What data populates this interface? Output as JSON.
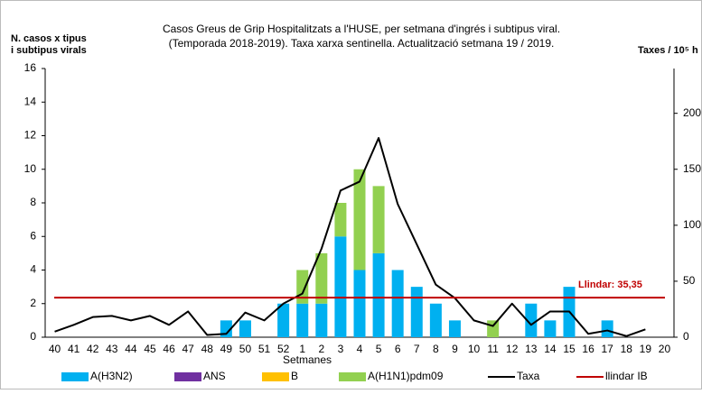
{
  "chart_data": {
    "type": "bar",
    "title": "Casos  Greus de Grip Hospitalitzats a l'HUSE, per setmana  d'ingrés  i subtipus viral.",
    "subtitle": "(Temporada 2018-2019). Taxa xarxa sentinella.  Actualització setmana  19 / 2019.",
    "y_label": [
      "N.  casos x tipus",
      "i subtipus virals"
    ],
    "y2_label": "Taxes / 10⁵ h",
    "x_label": "Setmanes",
    "categories": [
      "40",
      "41",
      "42",
      "43",
      "44",
      "45",
      "46",
      "47",
      "48",
      "49",
      "50",
      "51",
      "52",
      "1",
      "2",
      "3",
      "4",
      "5",
      "6",
      "7",
      "8",
      "9",
      "10",
      "11",
      "12",
      "13",
      "14",
      "15",
      "16",
      "17",
      "18",
      "19",
      "20"
    ],
    "series": [
      {
        "name": "A(H3N2)",
        "color": "#00b0f0",
        "values": [
          0,
          0,
          0,
          0,
          0,
          0,
          0,
          0,
          0,
          1,
          1,
          0,
          2,
          2,
          2,
          6,
          4,
          5,
          4,
          3,
          2,
          1,
          0,
          0,
          0,
          2,
          1,
          3,
          0,
          1,
          0,
          0,
          0
        ]
      },
      {
        "name": "ANS",
        "color": "#7030a0",
        "values": [
          0,
          0,
          0,
          0,
          0,
          0,
          0,
          0,
          0,
          0,
          0,
          0,
          0,
          0,
          0,
          0,
          0,
          0,
          0,
          0,
          0,
          0,
          0,
          0,
          0,
          0,
          0,
          0,
          0,
          0,
          0,
          0,
          0
        ]
      },
      {
        "name": "B",
        "color": "#ffc000",
        "values": [
          0,
          0,
          0,
          0,
          0,
          0,
          0,
          0,
          0,
          0,
          0,
          0,
          0,
          0,
          0,
          0,
          0,
          0,
          0,
          0,
          0,
          0,
          0,
          0,
          0,
          0,
          0,
          0,
          0,
          0,
          0,
          0,
          0
        ]
      },
      {
        "name": "A(H1N1)pdm09",
        "color": "#92d050",
        "values": [
          0,
          0,
          0,
          0,
          0,
          0,
          0,
          0,
          0,
          0,
          0,
          0,
          0,
          2,
          3,
          2,
          6,
          4,
          0,
          0,
          0,
          0,
          0,
          1,
          0,
          0,
          0,
          0,
          0,
          0,
          0,
          0,
          0
        ]
      },
      {
        "name": "Taxa",
        "color": "#000000",
        "type": "line",
        "axis": "y2",
        "values": [
          5,
          11,
          18,
          19,
          15,
          19,
          11,
          23,
          2,
          3,
          22,
          15,
          30,
          39,
          79,
          131,
          139,
          178,
          119,
          83,
          47,
          35,
          15,
          10,
          30,
          11,
          23,
          23,
          3,
          6,
          1,
          7,
          null
        ]
      },
      {
        "name": "llindar IB",
        "color": "#c00000",
        "type": "threshold",
        "axis": "y2",
        "value": 35.35
      }
    ],
    "annotation": "Llindar: 35,35",
    "ylim": [
      0,
      16
    ],
    "yticks": [
      0,
      2,
      4,
      6,
      8,
      10,
      12,
      14,
      16
    ],
    "y2lim": [
      0,
      240
    ],
    "y2ticks": [
      0,
      50,
      100,
      150,
      200
    ],
    "grid": false
  }
}
